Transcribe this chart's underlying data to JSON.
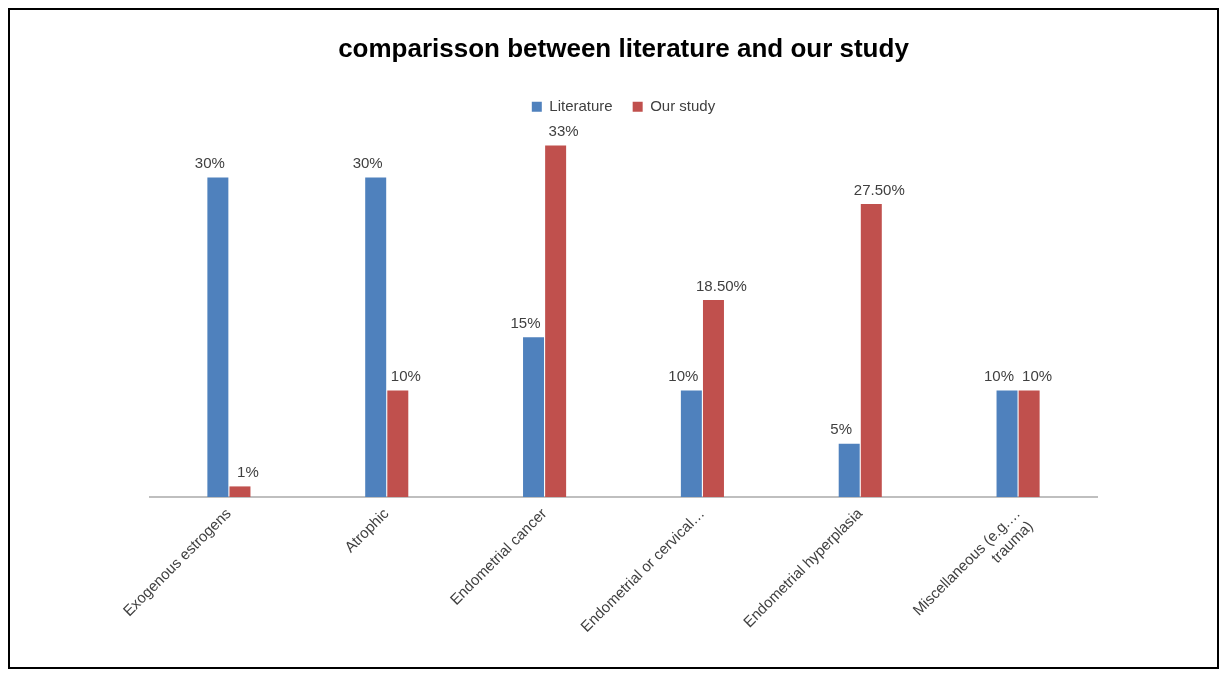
{
  "chart_data": {
    "type": "bar",
    "title": "comparisson between literature and our study",
    "categories": [
      "Exogenous estrogens",
      "Atrophic",
      "Endometrial cancer",
      "Endometrial or cervical…",
      "Endometrial hyperplasia",
      "Miscellaneous (e.g.…\ntrauma)"
    ],
    "series": [
      {
        "name": "Literature",
        "color": "#4f81bd",
        "values": [
          30,
          30,
          15,
          10,
          5,
          10
        ],
        "value_labels": [
          "30%",
          "30%",
          "15%",
          "10%",
          "5%",
          "10%"
        ]
      },
      {
        "name": "Our study",
        "color": "#c0504d",
        "values": [
          1,
          10,
          33,
          18.5,
          27.5,
          10
        ],
        "value_labels": [
          "1%",
          "10%",
          "33%",
          "18.50%",
          "27.50%",
          "10%"
        ]
      }
    ],
    "legend": "top",
    "tick_labels": "x",
    "grid": false
  }
}
